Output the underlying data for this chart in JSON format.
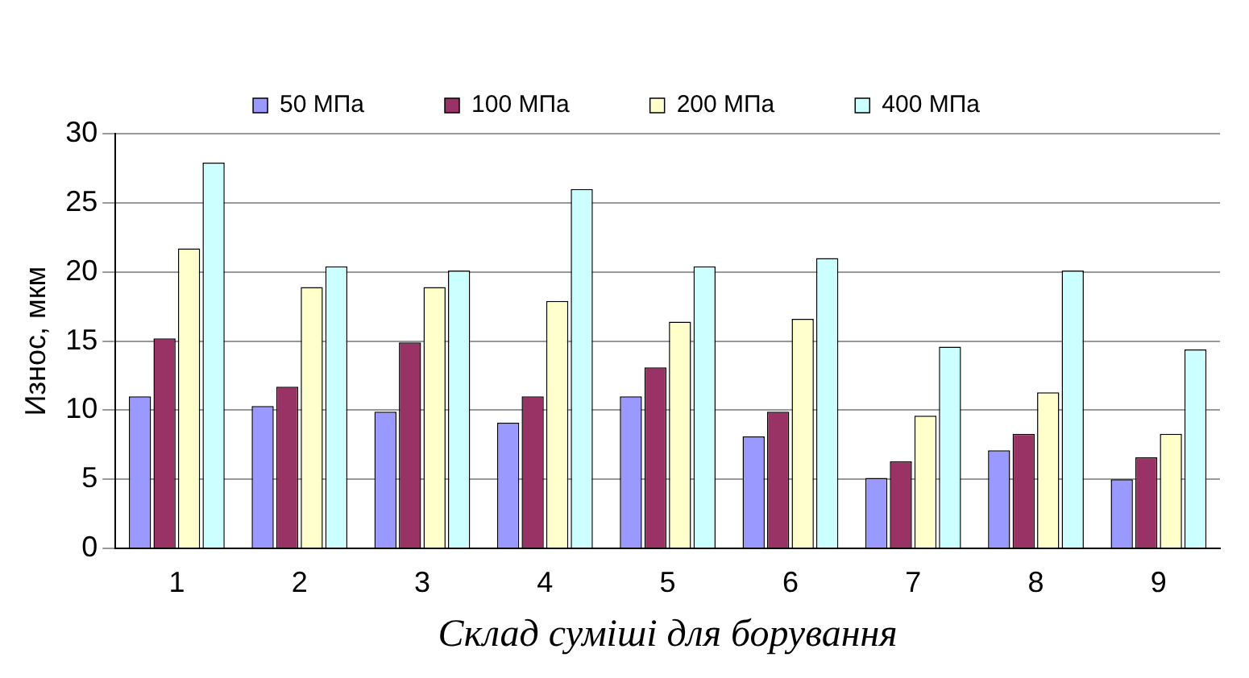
{
  "chart_data": {
    "type": "bar",
    "xlabel": "Склад суміші для борування",
    "ylabel": "Износ, мкм",
    "categories": [
      "1",
      "2",
      "3",
      "4",
      "5",
      "6",
      "7",
      "8",
      "9"
    ],
    "series": [
      {
        "name": "50 МПа",
        "color": "#9999ff",
        "values": [
          11.0,
          10.3,
          9.9,
          9.1,
          11.0,
          8.1,
          5.1,
          7.1,
          5.0
        ]
      },
      {
        "name": "100 МПа",
        "color": "#993366",
        "values": [
          15.2,
          11.7,
          14.9,
          11.0,
          13.1,
          9.9,
          6.3,
          8.3,
          6.6
        ]
      },
      {
        "name": "200 МПа",
        "color": "#ffffcc",
        "values": [
          21.7,
          18.9,
          18.9,
          17.9,
          16.4,
          16.6,
          9.6,
          11.3,
          8.3
        ]
      },
      {
        "name": "400 МПа",
        "color": "#ccffff",
        "values": [
          27.9,
          20.4,
          20.1,
          26.0,
          20.4,
          21.0,
          14.6,
          20.1,
          14.4
        ]
      }
    ],
    "ylim": [
      0,
      30
    ],
    "yticks": [
      0,
      5,
      10,
      15,
      20,
      25,
      30
    ],
    "grid": "y",
    "legend": "top"
  }
}
